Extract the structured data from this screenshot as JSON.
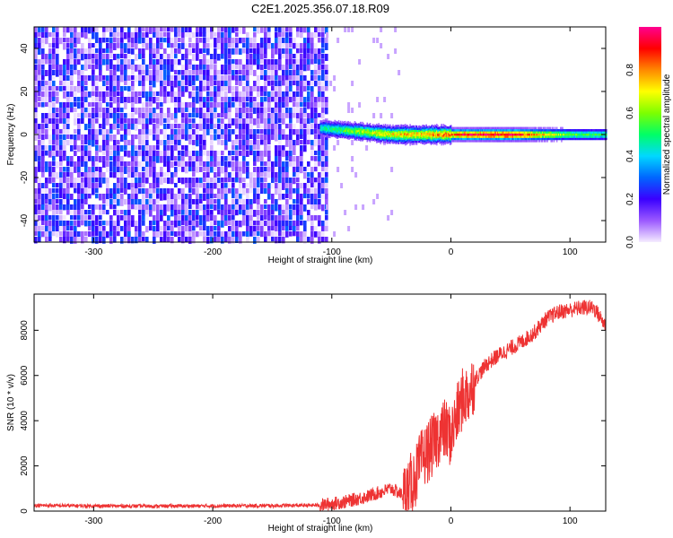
{
  "title": "C2E1.2025.356.07.18.R09",
  "chart_data": [
    {
      "type": "heatmap",
      "title": "C2E1.2025.356.07.18.R09",
      "xlabel": "Height of straight line (km)",
      "ylabel": "Frequency (Hz)",
      "xlim": [
        -350,
        130
      ],
      "ylim": [
        -50,
        50
      ],
      "xticks": [
        -300,
        -200,
        -100,
        0,
        100
      ],
      "yticks": [
        -40,
        -20,
        0,
        20,
        40
      ],
      "colorbar": {
        "label": "Normalized spectral amplitude",
        "range": [
          0,
          1
        ],
        "ticks": [
          "0.0",
          "0.2",
          "0.4",
          "0.6",
          "0.8"
        ],
        "colors": [
          "#f5ecff",
          "#9b59ff",
          "#3a00ff",
          "#0066ff",
          "#00d8ff",
          "#00ff66",
          "#7dff00",
          "#ffff00",
          "#ff8800",
          "#ff0000",
          "#ff0090"
        ]
      },
      "noise_region_x": [
        -350,
        -105
      ],
      "noise_amplitude": 0.25,
      "signal_line": [
        {
          "x": -110,
          "freq": 3,
          "amp": 0.45
        },
        {
          "x": -90,
          "freq": 2,
          "amp": 0.55
        },
        {
          "x": -70,
          "freq": 1,
          "amp": 0.65
        },
        {
          "x": -50,
          "freq": 0,
          "amp": 0.7
        },
        {
          "x": -30,
          "freq": 0,
          "amp": 0.75
        },
        {
          "x": -10,
          "freq": 0,
          "amp": 0.8
        },
        {
          "x": 10,
          "freq": 0,
          "amp": 0.9
        },
        {
          "x": 50,
          "freq": 0,
          "amp": 0.95
        },
        {
          "x": 100,
          "freq": 0,
          "amp": 0.55
        },
        {
          "x": 130,
          "freq": 0,
          "amp": 0.5
        }
      ]
    },
    {
      "type": "line",
      "xlabel": "Height of straight line (km)",
      "ylabel": "SNR (10 * v/v)",
      "xlim": [
        -350,
        130
      ],
      "ylim": [
        0,
        9600
      ],
      "xticks": [
        -300,
        -200,
        -100,
        0,
        100
      ],
      "yticks": [
        0,
        2000,
        4000,
        6000,
        8000
      ],
      "color": "#ee3333",
      "series": [
        {
          "x": [
            -350,
            -300,
            -250,
            -200,
            -150,
            -110,
            -90,
            -70,
            -50,
            -40,
            -30,
            -25,
            -20,
            -15,
            -10,
            -5,
            0,
            5,
            10,
            15,
            20,
            30,
            40,
            50,
            60,
            70,
            80,
            90,
            100,
            110,
            120,
            130
          ],
          "values": [
            250,
            230,
            220,
            230,
            240,
            260,
            400,
            650,
            1000,
            700,
            1500,
            2200,
            2600,
            2900,
            3400,
            3600,
            3300,
            4200,
            5000,
            5200,
            5800,
            6500,
            6900,
            7200,
            7500,
            7900,
            8500,
            8800,
            8900,
            9000,
            9000,
            8200
          ]
        }
      ]
    }
  ]
}
